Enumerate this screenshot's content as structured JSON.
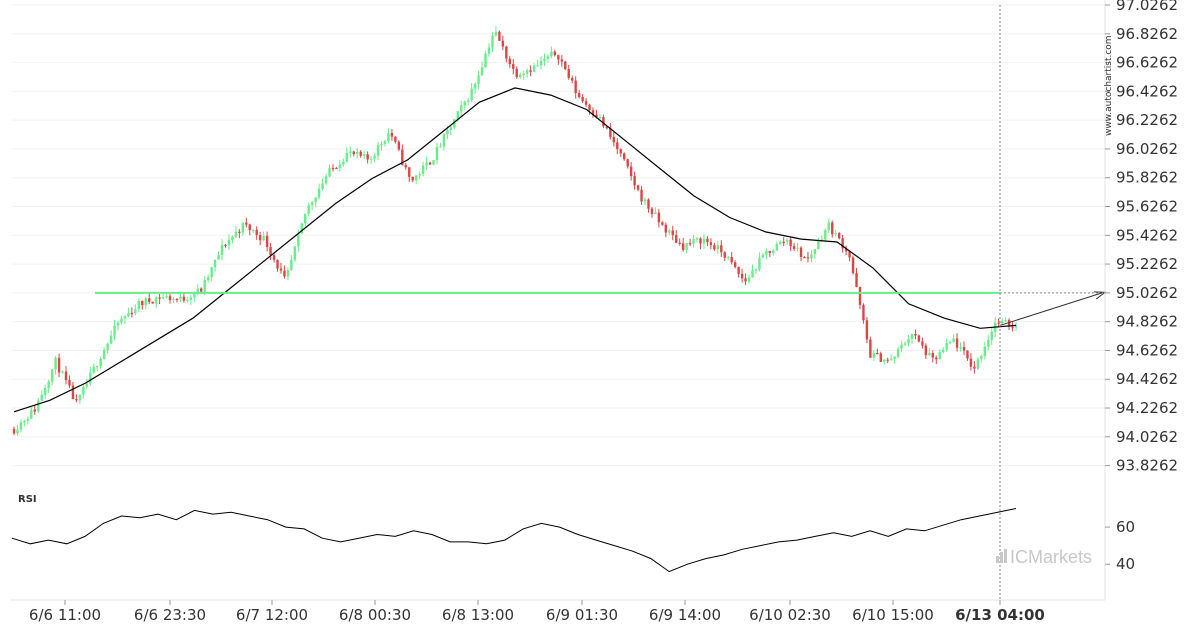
{
  "chart_data": [
    {
      "type": "candlestick",
      "title": "",
      "ylim": [
        93.7262,
        97.0262
      ],
      "y_ticks": [
        "97.0262",
        "96.8262",
        "96.6262",
        "96.4262",
        "96.2262",
        "96.0262",
        "95.8262",
        "95.6262",
        "95.4262",
        "95.2262",
        "95.0262",
        "94.8262",
        "94.6262",
        "94.4262",
        "94.2262",
        "94.0262",
        "93.8262"
      ],
      "x_ticks": [
        "6/6 11:00",
        "6/6 23:30",
        "6/7 12:00",
        "6/8 00:30",
        "6/8 13:00",
        "6/9 01:30",
        "6/9 14:00",
        "6/10 02:30",
        "6/10 15:00",
        "6/13 04:00"
      ],
      "x_ticks_bold": [
        false,
        false,
        false,
        false,
        false,
        false,
        false,
        false,
        false,
        true
      ],
      "support_resistance_level": 95.0262,
      "level_color": "#66ee88",
      "up_color": "#66ee88",
      "down_color": "#dd4444",
      "moving_average_color": "#000000",
      "projection_target": 95.0262,
      "price_path": [
        94.08,
        94.22,
        94.55,
        94.25,
        94.55,
        94.82,
        94.95,
        95.0,
        94.98,
        95.05,
        95.35,
        95.5,
        95.4,
        95.1,
        95.6,
        95.85,
        96.0,
        95.95,
        96.15,
        95.8,
        95.95,
        96.2,
        96.45,
        96.85,
        96.55,
        96.6,
        96.7,
        96.4,
        96.25,
        96.0,
        95.7,
        95.5,
        95.35,
        95.4,
        95.3,
        95.1,
        95.3,
        95.4,
        95.25,
        95.5,
        95.3,
        94.6,
        94.55,
        94.75,
        94.55,
        94.7,
        94.5,
        94.82,
        94.8
      ],
      "moving_average": [
        94.2,
        94.28,
        94.4,
        94.55,
        94.7,
        94.85,
        95.05,
        95.25,
        95.45,
        95.65,
        95.82,
        95.95,
        96.15,
        96.35,
        96.45,
        96.4,
        96.3,
        96.1,
        95.9,
        95.7,
        95.55,
        95.45,
        95.4,
        95.38,
        95.2,
        94.95,
        94.85,
        94.78,
        94.8
      ]
    },
    {
      "type": "line",
      "title": "RSI",
      "ylim": [
        25,
        80
      ],
      "y_ticks": [
        "60",
        "40"
      ],
      "values": [
        54,
        51,
        53,
        51,
        55,
        62,
        66,
        65,
        67,
        64,
        69,
        67,
        68,
        66,
        64,
        60,
        59,
        54,
        52,
        54,
        56,
        55,
        58,
        56,
        52,
        52,
        51,
        53,
        59,
        62,
        60,
        56,
        53,
        50,
        47,
        43,
        36,
        40,
        43,
        45,
        48,
        50,
        52,
        53,
        55,
        57,
        55,
        58,
        55,
        59,
        58,
        61,
        64,
        66,
        68,
        70
      ]
    }
  ],
  "watermark": "www.autochartist.com",
  "brand": "ICMarkets"
}
